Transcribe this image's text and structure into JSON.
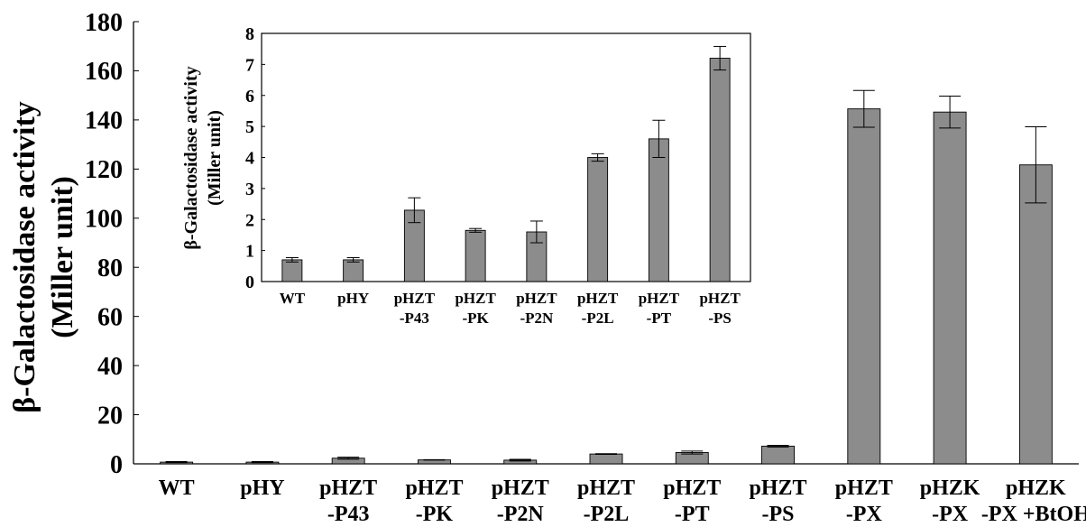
{
  "chart_data": [
    {
      "type": "bar",
      "ylabel": "β-Galactosidase activity",
      "ylabel_unit": "(Miller unit)",
      "ylim": [
        0,
        180
      ],
      "yticks": [
        0,
        20,
        40,
        60,
        80,
        100,
        120,
        140,
        160,
        180
      ],
      "categories": [
        [
          "WT"
        ],
        [
          "pHY"
        ],
        [
          "pHZT",
          "-P43"
        ],
        [
          "pHZT",
          "-PK"
        ],
        [
          "pHZT",
          "-P2N"
        ],
        [
          "pHZT",
          "-P2L"
        ],
        [
          "pHZT",
          "-PT"
        ],
        [
          "pHZT",
          "-PS"
        ],
        [
          "pHZT",
          "-PX"
        ],
        [
          "pHZK",
          "-PX"
        ],
        [
          "pHZK",
          "-PX +BtOH"
        ]
      ],
      "values": [
        0.7,
        0.7,
        2.3,
        1.6,
        1.5,
        4.0,
        4.6,
        7.2,
        144.5,
        143.2,
        121.7
      ],
      "errors": [
        0.2,
        0.2,
        0.4,
        0.1,
        0.35,
        0.15,
        0.6,
        0.35,
        7.5,
        6.5,
        15.5
      ],
      "bar_color": "#8c8c8c",
      "grid": false
    },
    {
      "type": "bar",
      "placement": "inset",
      "ylabel": "β-Galactosidase activity",
      "ylabel_unit": "(Miller unit)",
      "ylim": [
        0,
        8
      ],
      "yticks": [
        0,
        1,
        2,
        3,
        4,
        5,
        6,
        7,
        8
      ],
      "categories": [
        [
          "WT"
        ],
        [
          "pHY"
        ],
        [
          "pHZT",
          "-P43"
        ],
        [
          "pHZT",
          "-PK"
        ],
        [
          "pHZT",
          "-P2N"
        ],
        [
          "pHZT",
          "-P2L"
        ],
        [
          "pHZT",
          "-PT"
        ],
        [
          "pHZT",
          "-PS"
        ]
      ],
      "values": [
        0.7,
        0.7,
        2.3,
        1.65,
        1.6,
        4.0,
        4.6,
        7.2
      ],
      "errors": [
        0.07,
        0.07,
        0.4,
        0.06,
        0.35,
        0.12,
        0.6,
        0.38
      ],
      "bar_color": "#8c8c8c",
      "grid": false
    }
  ]
}
